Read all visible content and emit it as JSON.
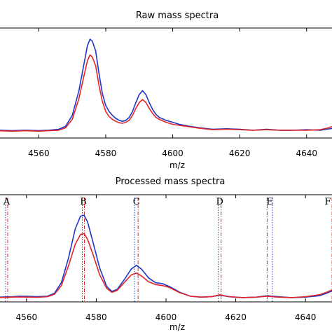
{
  "chart_data": [
    {
      "type": "line",
      "title": "Raw mass spectra",
      "xlabel": "m/z",
      "ylabel": "",
      "xlim": [
        4548,
        4648
      ],
      "ylim": [
        0,
        1.0
      ],
      "xticks": [
        4560,
        4580,
        4600,
        4620,
        4640
      ],
      "grid": false,
      "series": [
        {
          "color": "#1f35c8",
          "points": [
            [
              4548,
              0.05
            ],
            [
              4552,
              0.045
            ],
            [
              4556,
              0.05
            ],
            [
              4560,
              0.045
            ],
            [
              4563,
              0.05
            ],
            [
              4566,
              0.06
            ],
            [
              4568,
              0.09
            ],
            [
              4570,
              0.2
            ],
            [
              4572,
              0.45
            ],
            [
              4573.5,
              0.72
            ],
            [
              4574.5,
              0.9
            ],
            [
              4575.3,
              0.97
            ],
            [
              4576,
              0.95
            ],
            [
              4577,
              0.85
            ],
            [
              4578,
              0.62
            ],
            [
              4579,
              0.42
            ],
            [
              4580,
              0.3
            ],
            [
              4581,
              0.24
            ],
            [
              4582,
              0.2
            ],
            [
              4583,
              0.17
            ],
            [
              4584,
              0.15
            ],
            [
              4585,
              0.14
            ],
            [
              4586,
              0.15
            ],
            [
              4587,
              0.18
            ],
            [
              4588,
              0.24
            ],
            [
              4589,
              0.33
            ],
            [
              4590,
              0.41
            ],
            [
              4591,
              0.45
            ],
            [
              4592,
              0.41
            ],
            [
              4593,
              0.33
            ],
            [
              4594,
              0.26
            ],
            [
              4595,
              0.21
            ],
            [
              4596,
              0.18
            ],
            [
              4598,
              0.15
            ],
            [
              4600,
              0.13
            ],
            [
              4602,
              0.11
            ],
            [
              4605,
              0.09
            ],
            [
              4608,
              0.075
            ],
            [
              4612,
              0.06
            ],
            [
              4616,
              0.065
            ],
            [
              4620,
              0.06
            ],
            [
              4624,
              0.05
            ],
            [
              4628,
              0.06
            ],
            [
              4632,
              0.05
            ],
            [
              4636,
              0.05
            ],
            [
              4640,
              0.055
            ],
            [
              4644,
              0.05
            ],
            [
              4646,
              0.06
            ],
            [
              4648,
              0.07
            ]
          ]
        },
        {
          "color": "#e0252a",
          "points": [
            [
              4548,
              0.045
            ],
            [
              4552,
              0.04
            ],
            [
              4556,
              0.045
            ],
            [
              4560,
              0.04
            ],
            [
              4563,
              0.045
            ],
            [
              4566,
              0.05
            ],
            [
              4568,
              0.075
            ],
            [
              4570,
              0.16
            ],
            [
              4572,
              0.37
            ],
            [
              4573.5,
              0.6
            ],
            [
              4574.5,
              0.75
            ],
            [
              4575.3,
              0.81
            ],
            [
              4576,
              0.79
            ],
            [
              4577,
              0.7
            ],
            [
              4578,
              0.5
            ],
            [
              4579,
              0.34
            ],
            [
              4580,
              0.24
            ],
            [
              4581,
              0.19
            ],
            [
              4582,
              0.16
            ],
            [
              4583,
              0.14
            ],
            [
              4584,
              0.125
            ],
            [
              4585,
              0.12
            ],
            [
              4586,
              0.13
            ],
            [
              4587,
              0.15
            ],
            [
              4588,
              0.2
            ],
            [
              4589,
              0.27
            ],
            [
              4590,
              0.33
            ],
            [
              4591,
              0.36
            ],
            [
              4592,
              0.33
            ],
            [
              4593,
              0.27
            ],
            [
              4594,
              0.22
            ],
            [
              4595,
              0.18
            ],
            [
              4596,
              0.16
            ],
            [
              4598,
              0.13
            ],
            [
              4600,
              0.11
            ],
            [
              4602,
              0.1
            ],
            [
              4605,
              0.085
            ],
            [
              4608,
              0.07
            ],
            [
              4612,
              0.055
            ],
            [
              4616,
              0.06
            ],
            [
              4620,
              0.055
            ],
            [
              4624,
              0.05
            ],
            [
              4628,
              0.055
            ],
            [
              4632,
              0.05
            ],
            [
              4636,
              0.05
            ],
            [
              4640,
              0.05
            ],
            [
              4644,
              0.055
            ],
            [
              4646,
              0.07
            ],
            [
              4648,
              0.09
            ]
          ]
        }
      ]
    },
    {
      "type": "line",
      "title": "Processed mass spectra",
      "xlabel": "m/z",
      "ylabel": "",
      "xlim": [
        4552,
        4648
      ],
      "ylim": [
        0,
        1.0
      ],
      "xticks": [
        4560,
        4580,
        4600,
        4620,
        4640
      ],
      "grid": false,
      "series": [
        {
          "color": "#1f35c8",
          "points": [
            [
              4552,
              0.02
            ],
            [
              4556,
              0.025
            ],
            [
              4558,
              0.03
            ],
            [
              4560,
              0.028
            ],
            [
              4563,
              0.025
            ],
            [
              4566,
              0.03
            ],
            [
              4568,
              0.06
            ],
            [
              4570,
              0.17
            ],
            [
              4572,
              0.42
            ],
            [
              4574,
              0.73
            ],
            [
              4575.5,
              0.86
            ],
            [
              4576.5,
              0.87
            ],
            [
              4577.5,
              0.8
            ],
            [
              4579,
              0.6
            ],
            [
              4581,
              0.32
            ],
            [
              4583,
              0.13
            ],
            [
              4584.5,
              0.08
            ],
            [
              4586,
              0.1
            ],
            [
              4588,
              0.2
            ],
            [
              4590,
              0.31
            ],
            [
              4591.5,
              0.35
            ],
            [
              4593,
              0.31
            ],
            [
              4595,
              0.22
            ],
            [
              4597,
              0.17
            ],
            [
              4599,
              0.16
            ],
            [
              4601,
              0.13
            ],
            [
              4604,
              0.07
            ],
            [
              4607,
              0.03
            ],
            [
              4610,
              0.02
            ],
            [
              4613,
              0.025
            ],
            [
              4615.5,
              0.04
            ],
            [
              4618,
              0.025
            ],
            [
              4622,
              0.015
            ],
            [
              4626,
              0.02
            ],
            [
              4629,
              0.035
            ],
            [
              4632,
              0.025
            ],
            [
              4636,
              0.015
            ],
            [
              4640,
              0.02
            ],
            [
              4644,
              0.035
            ],
            [
              4646,
              0.06
            ],
            [
              4648,
              0.09
            ]
          ]
        },
        {
          "color": "#e0252a",
          "points": [
            [
              4552,
              0.015
            ],
            [
              4556,
              0.02
            ],
            [
              4558,
              0.022
            ],
            [
              4560,
              0.02
            ],
            [
              4563,
              0.018
            ],
            [
              4566,
              0.025
            ],
            [
              4568,
              0.05
            ],
            [
              4570,
              0.14
            ],
            [
              4572,
              0.34
            ],
            [
              4574,
              0.57
            ],
            [
              4575.5,
              0.67
            ],
            [
              4576.5,
              0.68
            ],
            [
              4577.5,
              0.62
            ],
            [
              4579,
              0.47
            ],
            [
              4581,
              0.25
            ],
            [
              4583,
              0.11
            ],
            [
              4584.5,
              0.07
            ],
            [
              4586,
              0.09
            ],
            [
              4588,
              0.17
            ],
            [
              4590,
              0.25
            ],
            [
              4591.5,
              0.27
            ],
            [
              4593,
              0.24
            ],
            [
              4595,
              0.18
            ],
            [
              4597,
              0.15
            ],
            [
              4599,
              0.14
            ],
            [
              4601,
              0.12
            ],
            [
              4604,
              0.065
            ],
            [
              4607,
              0.03
            ],
            [
              4610,
              0.02
            ],
            [
              4613,
              0.025
            ],
            [
              4615.5,
              0.045
            ],
            [
              4618,
              0.025
            ],
            [
              4622,
              0.015
            ],
            [
              4626,
              0.02
            ],
            [
              4629,
              0.03
            ],
            [
              4632,
              0.02
            ],
            [
              4636,
              0.015
            ],
            [
              4640,
              0.025
            ],
            [
              4644,
              0.045
            ],
            [
              4646,
              0.07
            ],
            [
              4648,
              0.1
            ]
          ]
        }
      ],
      "peak_markers": [
        {
          "label": "A",
          "blue_x": 4554.0,
          "red_x": 4554.6
        },
        {
          "label": "B",
          "blue_x": 4576.0,
          "red_x": 4576.6
        },
        {
          "label": "C",
          "blue_x": 4591.0,
          "red_x": 4592.0
        },
        {
          "label": "D",
          "blue_x": 4615.0,
          "red_x": 4615.8
        },
        {
          "label": "E",
          "blue_x": 4630.5,
          "red_x": 4629.0
        },
        {
          "label": "F",
          "blue_x": 4648.6,
          "red_x": 4647.6
        }
      ]
    }
  ],
  "colors": {
    "series_blue": "#1f35c8",
    "series_red": "#e0252a",
    "axes": "#000000"
  }
}
